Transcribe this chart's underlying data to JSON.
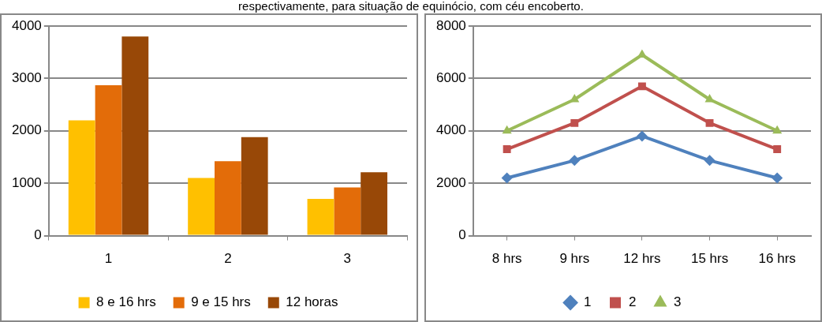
{
  "chart_data": [
    {
      "type": "bar",
      "annotations": [
        "respectivamente, para situação de equinócio, com céu encoberto."
      ],
      "categories": [
        "1",
        "2",
        "3"
      ],
      "series": [
        {
          "name": "8 e 16 hrs",
          "color": "#ffc000",
          "values": [
            2200,
            1100,
            700
          ]
        },
        {
          "name": "9 e 15 hrs",
          "color": "#e36c09",
          "values": [
            2870,
            1420,
            920
          ]
        },
        {
          "name": "12 horas",
          "color": "#984807",
          "values": [
            3800,
            1880,
            1210
          ]
        }
      ],
      "ylim": [
        0,
        4000
      ],
      "yticks": [
        0,
        1000,
        2000,
        3000,
        4000
      ],
      "grid": "y",
      "legend": "bottom"
    },
    {
      "type": "line",
      "categories": [
        "8 hrs",
        "9 hrs",
        "12 hrs",
        "15 hrs",
        "16 hrs"
      ],
      "series": [
        {
          "name": "1",
          "color": "#4f81bd",
          "marker": "diamond",
          "values": [
            2200,
            2870,
            3800,
            2870,
            2200
          ]
        },
        {
          "name": "2",
          "color": "#c0504d",
          "marker": "square",
          "values": [
            3300,
            4300,
            5700,
            4300,
            3300
          ]
        },
        {
          "name": "3",
          "color": "#9bbb59",
          "marker": "triangle",
          "values": [
            4000,
            5200,
            6900,
            5200,
            4000
          ]
        }
      ],
      "ylim": [
        0,
        8000
      ],
      "yticks": [
        0,
        2000,
        4000,
        6000,
        8000
      ],
      "grid": "y",
      "legend": "bottom"
    }
  ]
}
